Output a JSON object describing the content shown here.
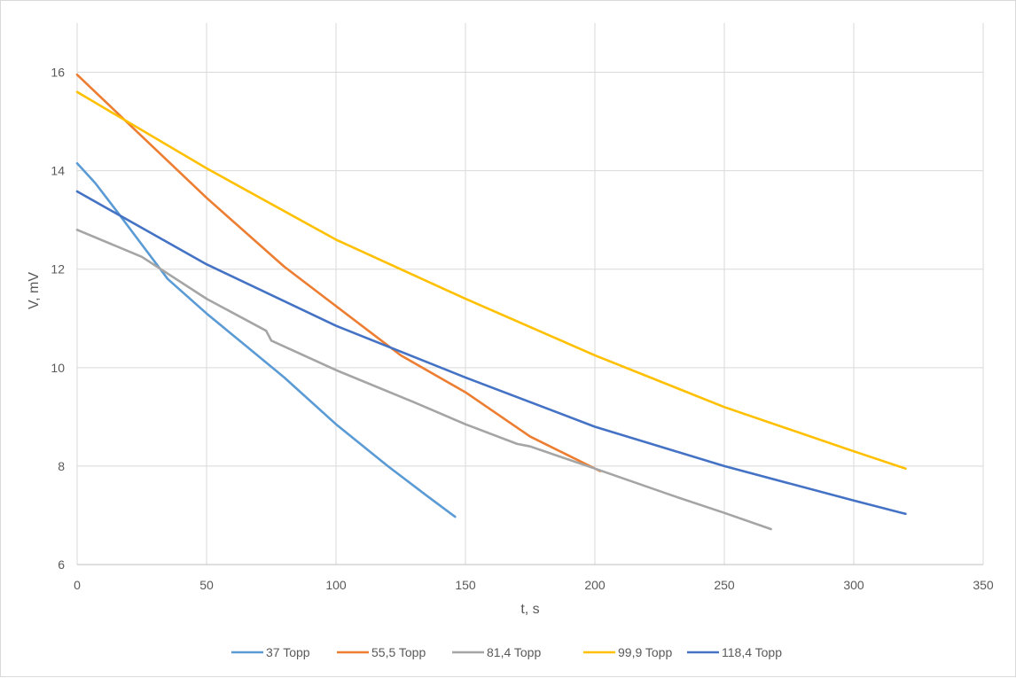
{
  "chart_data": {
    "type": "line",
    "title": "",
    "xlabel": "t, s",
    "ylabel": "V, mV",
    "xlim": [
      0,
      350
    ],
    "ylim": [
      6,
      17
    ],
    "x_ticks": [
      0,
      50,
      100,
      150,
      200,
      250,
      300,
      350
    ],
    "y_ticks": [
      6,
      8,
      10,
      12,
      14,
      16
    ],
    "grid": true,
    "legend_position": "bottom",
    "series": [
      {
        "name": "37 Topp",
        "color": "#5b9bd5",
        "points": [
          [
            0,
            14.15
          ],
          [
            7,
            13.75
          ],
          [
            15,
            13.2
          ],
          [
            25,
            12.5
          ],
          [
            35,
            11.8
          ],
          [
            50,
            11.1
          ],
          [
            65,
            10.45
          ],
          [
            80,
            9.8
          ],
          [
            100,
            8.85
          ],
          [
            120,
            8.0
          ],
          [
            135,
            7.4
          ],
          [
            146,
            6.97
          ]
        ]
      },
      {
        "name": "55,5 Topp",
        "color": "#ed7d31",
        "points": [
          [
            0,
            15.95
          ],
          [
            20,
            14.95
          ],
          [
            50,
            13.45
          ],
          [
            80,
            12.05
          ],
          [
            100,
            11.25
          ],
          [
            125,
            10.25
          ],
          [
            150,
            9.5
          ],
          [
            175,
            8.6
          ],
          [
            202,
            7.9
          ]
        ]
      },
      {
        "name": "81,4 Topp",
        "color": "#a5a5a5",
        "points": [
          [
            0,
            12.8
          ],
          [
            25,
            12.25
          ],
          [
            50,
            11.4
          ],
          [
            73,
            10.75
          ],
          [
            75,
            10.55
          ],
          [
            100,
            9.95
          ],
          [
            130,
            9.3
          ],
          [
            150,
            8.85
          ],
          [
            170,
            8.45
          ],
          [
            175,
            8.4
          ],
          [
            200,
            7.95
          ],
          [
            230,
            7.4
          ],
          [
            250,
            7.05
          ],
          [
            268,
            6.72
          ]
        ]
      },
      {
        "name": "99,9 Topp",
        "color": "#ffc000",
        "points": [
          [
            0,
            15.6
          ],
          [
            50,
            14.05
          ],
          [
            100,
            12.6
          ],
          [
            150,
            11.4
          ],
          [
            200,
            10.25
          ],
          [
            250,
            9.2
          ],
          [
            300,
            8.3
          ],
          [
            320,
            7.95
          ]
        ]
      },
      {
        "name": "118,4 Topp",
        "color": "#4472c4",
        "points": [
          [
            0,
            13.58
          ],
          [
            50,
            12.1
          ],
          [
            100,
            10.85
          ],
          [
            150,
            9.8
          ],
          [
            200,
            8.8
          ],
          [
            250,
            8.0
          ],
          [
            300,
            7.3
          ],
          [
            320,
            7.03
          ]
        ]
      }
    ]
  }
}
